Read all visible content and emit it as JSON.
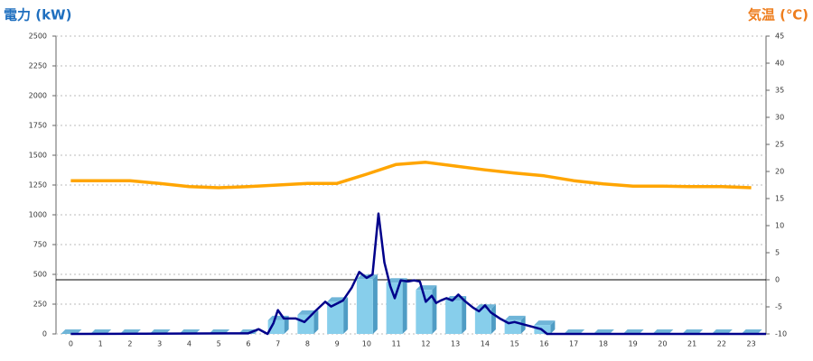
{
  "chart_data": {
    "type": "combo",
    "title": "電力 (kW)",
    "y2_title": "気温 (℃)",
    "categories": [
      0,
      1,
      2,
      3,
      4,
      5,
      6,
      7,
      8,
      9,
      10,
      11,
      12,
      13,
      14,
      15,
      16,
      17,
      18,
      19,
      20,
      21,
      22,
      23
    ],
    "ylim": [
      0,
      2500
    ],
    "yticks": [
      0,
      250,
      500,
      750,
      1000,
      1250,
      1500,
      1750,
      2000,
      2250,
      2500
    ],
    "y2lim": [
      -10,
      45
    ],
    "y2ticks": [
      -10,
      -5,
      0,
      5,
      10,
      15,
      20,
      25,
      30,
      35,
      40,
      45
    ],
    "grid": true,
    "y2_zero_line": true,
    "series": [
      {
        "type": "bar",
        "color": "#87ceeb",
        "values": [
          0,
          0,
          0,
          0,
          0,
          0,
          0,
          115,
          160,
          270,
          460,
          430,
          370,
          280,
          210,
          115,
          75,
          0,
          0,
          0,
          0,
          0,
          0,
          0
        ]
      },
      {
        "type": "line",
        "color": "#00008b",
        "x": [
          0,
          6,
          6.35,
          6.65,
          6.85,
          7,
          7.2,
          7.6,
          7.9,
          8.3,
          8.6,
          8.8,
          9.2,
          9.5,
          9.75,
          10,
          10.2,
          10.4,
          10.6,
          10.8,
          10.95,
          11.15,
          11.4,
          11.6,
          11.8,
          12,
          12.2,
          12.35,
          12.5,
          12.7,
          12.9,
          13.1,
          13.3,
          13.6,
          13.8,
          14,
          14.2,
          14.5,
          14.8,
          15,
          15.3,
          15.6,
          15.9,
          16.1,
          23.5
        ],
        "values": [
          0,
          5,
          40,
          0,
          90,
          200,
          130,
          130,
          100,
          200,
          270,
          230,
          280,
          390,
          520,
          470,
          500,
          1010,
          600,
          400,
          300,
          450,
          440,
          450,
          440,
          270,
          320,
          260,
          280,
          300,
          280,
          330,
          280,
          220,
          190,
          240,
          180,
          130,
          90,
          100,
          80,
          60,
          40,
          0,
          0
        ]
      },
      {
        "type": "line",
        "axis": "y2",
        "color": "#ffa500",
        "values": [
          18.3,
          18.3,
          18.3,
          17.8,
          17.2,
          17.0,
          17.2,
          17.5,
          17.8,
          17.8,
          19.5,
          21.3,
          21.7,
          21.0,
          20.3,
          19.7,
          19.2,
          18.3,
          17.7,
          17.3,
          17.3,
          17.2,
          17.2,
          17.0
        ]
      }
    ]
  }
}
